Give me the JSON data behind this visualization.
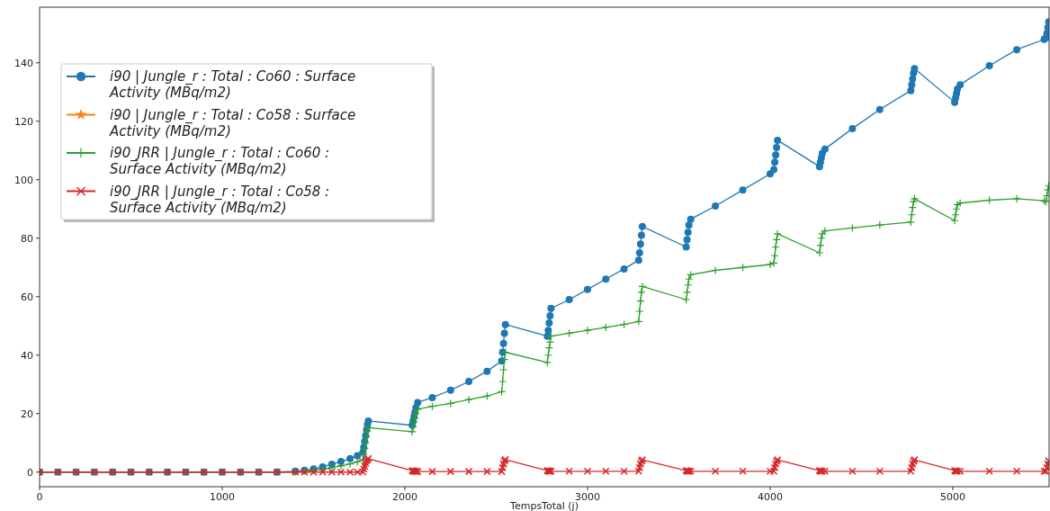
{
  "chart_data": {
    "type": "line",
    "xlabel": "TempsTotal (j)",
    "x": [
      0,
      100,
      200,
      300,
      400,
      500,
      600,
      700,
      800,
      900,
      1000,
      1100,
      1200,
      1300,
      1400,
      1450,
      1500,
      1550,
      1600,
      1650,
      1700,
      1740,
      1770,
      1775,
      1780,
      1785,
      1790,
      1795,
      1800,
      2040,
      2045,
      2050,
      2055,
      2060,
      2070,
      2150,
      2250,
      2350,
      2450,
      2530,
      2535,
      2540,
      2545,
      2550,
      2780,
      2785,
      2790,
      2795,
      2800,
      2900,
      3000,
      3100,
      3200,
      3280,
      3285,
      3290,
      3295,
      3300,
      3540,
      3545,
      3550,
      3555,
      3565,
      3700,
      3850,
      4000,
      4020,
      4025,
      4030,
      4035,
      4040,
      4270,
      4275,
      4280,
      4285,
      4300,
      4450,
      4600,
      4770,
      4775,
      4780,
      4785,
      4790,
      5010,
      5015,
      5020,
      5025,
      5040,
      5200,
      5350,
      5500,
      5510,
      5515,
      5520,
      5525
    ],
    "series": [
      {
        "name": "i90 | Jungle_r : Total : Co60 : Surface Activity (MBq/m2)",
        "color": "#1f77b4",
        "marker": "circle",
        "values": [
          0,
          0,
          0,
          0,
          0,
          0,
          0,
          0,
          0,
          0,
          0,
          0,
          0,
          0,
          0.3,
          0.6,
          1.1,
          1.8,
          2.7,
          3.6,
          4.6,
          5.6,
          6.8,
          8.5,
          10.5,
          12.5,
          14.5,
          16.2,
          17.5,
          16,
          17.5,
          19,
          20.5,
          22,
          23.8,
          25.5,
          28,
          31,
          34.5,
          38,
          41,
          44,
          47.5,
          50.5,
          46.5,
          48.5,
          51,
          53.5,
          56,
          59,
          62.5,
          66,
          69.5,
          72.5,
          75,
          78,
          81,
          84,
          77,
          79.5,
          82,
          84.5,
          86.5,
          91,
          96.5,
          102,
          103.5,
          106,
          108.5,
          111,
          113.5,
          104.5,
          106,
          107.5,
          109,
          110.5,
          117.5,
          124,
          130.5,
          132.5,
          134.5,
          136.5,
          138,
          126.5,
          128,
          129.5,
          131,
          132.5,
          139,
          144.5,
          148,
          148.5,
          150,
          152,
          154
        ]
      },
      {
        "name": "i90 | Jungle_r : Total : Co58 : Surface Activity (MBq/m2)",
        "color": "#ff7f0e",
        "marker": "star",
        "values": [
          null,
          null,
          null,
          null,
          null,
          null,
          null,
          null,
          null,
          null,
          null,
          null,
          null,
          null,
          null,
          null,
          null,
          null,
          null,
          null,
          null,
          null,
          null,
          null,
          null,
          null,
          null,
          null,
          null,
          null,
          null,
          null,
          null,
          null,
          null,
          null,
          null,
          null,
          null,
          null,
          null,
          null,
          null,
          null,
          null,
          null,
          null,
          null,
          null,
          null,
          null,
          null,
          null,
          null,
          null,
          null,
          null,
          null,
          null,
          null,
          null,
          null,
          null,
          null,
          null,
          null,
          null,
          null,
          null,
          null,
          null,
          null,
          null,
          null,
          null,
          null,
          null,
          null,
          null,
          null,
          null,
          null,
          null,
          null,
          null,
          null,
          null,
          null,
          null,
          null,
          null,
          null,
          null,
          null,
          null
        ]
      },
      {
        "name": "i90_JRR | Jungle_r : Total : Co60 : Surface Activity  (MBq/m2)",
        "color": "#2ca02c",
        "marker": "cross",
        "values": [
          0,
          0,
          0,
          0,
          0,
          0,
          0,
          0,
          0,
          0,
          0,
          0,
          0,
          0,
          0,
          0.3,
          0.6,
          1.0,
          1.5,
          2.1,
          2.8,
          3.5,
          4.3,
          6,
          8,
          10,
          12,
          14,
          15.2,
          13.8,
          15.5,
          17,
          18.5,
          20,
          21.5,
          22.5,
          23.5,
          24.8,
          26,
          27.5,
          31,
          35,
          38.5,
          41,
          37.5,
          40,
          42.5,
          44.5,
          46.5,
          47.5,
          48.5,
          49.5,
          50.5,
          51.5,
          55,
          58.5,
          61.5,
          63.5,
          59,
          61.5,
          64,
          66,
          67.5,
          69,
          70,
          71,
          71.5,
          74,
          77,
          79.5,
          81.5,
          75,
          77.5,
          80,
          81.5,
          82.5,
          83.5,
          84.5,
          85.5,
          88,
          90.5,
          92.5,
          93.5,
          86,
          88,
          90,
          91.5,
          92,
          93,
          93.5,
          92.8,
          92.5,
          94.5,
          96.5,
          98
        ]
      },
      {
        "name": "i90_JRR | Jungle_r : Total : Co58 : Surface Activity  (MBq/m2)",
        "color": "#d62728",
        "marker": "x",
        "values": [
          0,
          0,
          0,
          0,
          0,
          0,
          0,
          0,
          0,
          0,
          0,
          0,
          0,
          0,
          0,
          0,
          0,
          0,
          0,
          0,
          0,
          0,
          0,
          1,
          2,
          3,
          3.8,
          4.3,
          4.6,
          0.5,
          0.4,
          0.3,
          0.3,
          0.2,
          0.2,
          0.2,
          0.2,
          0.2,
          0.2,
          0.2,
          1.5,
          2.8,
          3.8,
          4.3,
          0.5,
          0.4,
          0.3,
          0.3,
          0.3,
          0.3,
          0.3,
          0.3,
          0.3,
          0.3,
          1.5,
          2.8,
          3.7,
          4.2,
          0.5,
          0.4,
          0.3,
          0.3,
          0.3,
          0.3,
          0.3,
          0.3,
          0.3,
          1.5,
          2.8,
          3.7,
          4.2,
          0.5,
          0.4,
          0.3,
          0.3,
          0.3,
          0.3,
          0.3,
          0.3,
          1.5,
          2.8,
          3.7,
          4.2,
          0.5,
          0.4,
          0.3,
          0.3,
          0.3,
          0.3,
          0.3,
          0.3,
          0.3,
          1.5,
          2.8,
          3.8
        ]
      }
    ],
    "xlim": [
      0,
      5527
    ],
    "ylim": [
      -5,
      159
    ],
    "xticks": [
      0,
      1000,
      2000,
      3000,
      4000,
      5000
    ],
    "yticks": [
      0,
      20,
      40,
      60,
      80,
      100,
      120,
      140
    ],
    "grid": false,
    "legend": "top left"
  }
}
